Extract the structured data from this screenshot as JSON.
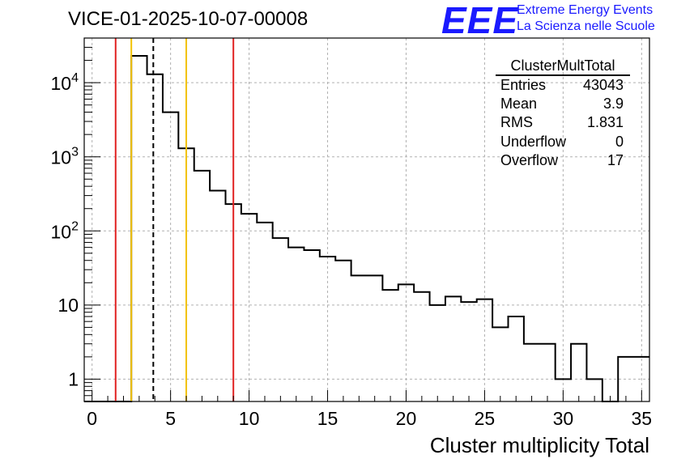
{
  "header": {
    "title": "VICE-01-2025-10-07-00008",
    "logo_text": "EEE",
    "logo_line1": "Extreme Energy Events",
    "logo_line2": "La Scienza nelle Scuole"
  },
  "stats_box": {
    "name": "ClusterMultTotal",
    "rows": [
      {
        "label": "Entries",
        "value": "43043"
      },
      {
        "label": "Mean",
        "value": "3.9"
      },
      {
        "label": "RMS",
        "value": "1.831"
      },
      {
        "label": "Underflow",
        "value": "0"
      },
      {
        "label": "Overflow",
        "value": "17"
      }
    ]
  },
  "chart_data": {
    "type": "histogram",
    "title": "VICE-01-2025-10-07-00008",
    "xlabel": "Cluster multiplicity Total",
    "ylabel": "",
    "xlim": [
      -0.5,
      35.5
    ],
    "ylim": [
      0.5,
      40000
    ],
    "yscale": "log",
    "bin_width": 1,
    "bin_lows": [
      -0.5,
      0.5,
      1.5,
      2.5,
      3.5,
      4.5,
      5.5,
      6.5,
      7.5,
      8.5,
      9.5,
      10.5,
      11.5,
      12.5,
      13.5,
      14.5,
      15.5,
      16.5,
      17.5,
      18.5,
      19.5,
      20.5,
      21.5,
      22.5,
      23.5,
      24.5,
      25.5,
      26.5,
      27.5,
      28.5,
      29.5,
      30.5,
      31.5,
      32.5,
      33.5,
      34.5
    ],
    "counts": [
      0,
      0,
      0,
      23000,
      13000,
      4000,
      1300,
      650,
      350,
      230,
      170,
      130,
      80,
      60,
      55,
      45,
      40,
      25,
      25,
      16,
      19,
      15,
      10,
      13,
      11,
      12,
      5,
      7,
      3,
      3,
      1,
      3,
      1,
      0,
      2,
      2
    ],
    "x_ticks": [
      0,
      5,
      10,
      15,
      20,
      25,
      30,
      35
    ],
    "x_tick_labels": [
      "0",
      "5",
      "10",
      "15",
      "20",
      "25",
      "30",
      "35"
    ],
    "y_ticks": [
      1,
      10,
      100,
      1000,
      10000
    ],
    "y_tick_labels": [
      "1",
      "10",
      "10^2",
      "10^3",
      "10^4"
    ],
    "grid": true,
    "vertical_lines": [
      {
        "x": 1.5,
        "color": "#e02020",
        "style": "solid"
      },
      {
        "x": 2.5,
        "color": "#f2c200",
        "style": "solid"
      },
      {
        "x": 3.9,
        "color": "#000000",
        "style": "dashed"
      },
      {
        "x": 6.0,
        "color": "#f2c200",
        "style": "solid"
      },
      {
        "x": 9.0,
        "color": "#e02020",
        "style": "solid"
      }
    ]
  }
}
